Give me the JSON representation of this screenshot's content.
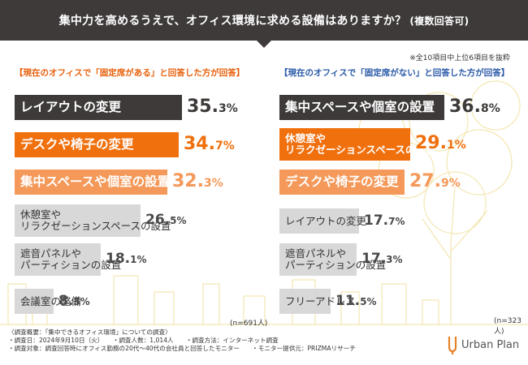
{
  "header": {
    "title": "集中力を高めるうえで、オフィス環境に求める設備はありますか？",
    "subtitle": "(複数回答可)"
  },
  "note": "※全10項目中上位6項目を抜粋",
  "brand": {
    "logo_text": "Urban Plan"
  },
  "colors": {
    "dark": "#3d3a39",
    "orange": "#f0700e",
    "light_orange": "#f4995a",
    "gray": "#d8d8d8",
    "blue": "#2a5aa8"
  },
  "chart_data": [
    {
      "type": "bar",
      "title": "【現在のオフィスで「固定席がある」と回答した方が回答】",
      "n_label": "(n=691人)",
      "categories": [
        "レイアウトの変更",
        "デスクや椅子の変更",
        "集中スペースや個室の設置",
        "休憩室やリラクゼーションスペースの設置",
        "遮音パネルやパーティションの設置",
        "会議室の整備"
      ],
      "display_labels": [
        [
          "レイアウトの変更"
        ],
        [
          "デスクや椅子の変更"
        ],
        [
          "集中スペースや個室の設置"
        ],
        [
          "休憩室や",
          "リラクゼーションスペースの設置"
        ],
        [
          "遮音パネルや",
          "パーティションの設置"
        ],
        [
          "会議室の整備"
        ]
      ],
      "values": [
        35.3,
        34.7,
        32.3,
        26.5,
        18.1,
        8.3
      ],
      "value_labels": [
        [
          "35.",
          "3%"
        ],
        [
          "34.",
          "7%"
        ],
        [
          "32.",
          "3%"
        ],
        [
          "26.",
          "5%"
        ],
        [
          "18.",
          "1%"
        ],
        [
          "8.",
          "3%"
        ]
      ],
      "styles": [
        "dark",
        "orange",
        "light_orange",
        "gray",
        "gray",
        "gray"
      ],
      "unit": "%"
    },
    {
      "type": "bar",
      "title": "【現在のオフィスで「固定席がない」と回答した方が回答】",
      "n_label": "(n=323人)",
      "categories": [
        "集中スペースや個室の設置",
        "休憩室やリラクゼーションスペースの設置",
        "デスクや椅子の変更",
        "レイアウトの変更",
        "遮音パネルやパーティションの設置",
        "フリーアドレス"
      ],
      "display_labels": [
        [
          "集中スペースや個室の設置"
        ],
        [
          "休憩室や",
          "リラクゼーションスペースの設置"
        ],
        [
          "デスクや椅子の変更"
        ],
        [
          "レイアウトの変更"
        ],
        [
          "遮音パネルや",
          "パーティションの設置"
        ],
        [
          "フリーアドレス"
        ]
      ],
      "values": [
        36.8,
        29.1,
        27.9,
        17.7,
        17.3,
        11.5
      ],
      "value_labels": [
        [
          "36.",
          "8%"
        ],
        [
          "29.",
          "1%"
        ],
        [
          "27.",
          "9%"
        ],
        [
          "17.",
          "7%"
        ],
        [
          "17.",
          "3%"
        ],
        [
          "11.",
          "5%"
        ]
      ],
      "styles": [
        "dark",
        "orange",
        "light_orange",
        "gray",
        "gray",
        "gray"
      ],
      "unit": "%"
    }
  ],
  "survey": {
    "lines": [
      "〈調査概要：「集中できるオフィス環境」についての調査〉",
      "・調査日：2024年9月10日（火）　　・調査人数：1,014人　　・調査方法：インターネット調査",
      "・調査対象：調査回答時にオフィス勤務の20代〜40代の会社員と回答したモニター　　・モニター提供元：PRIZMAリサーチ"
    ]
  }
}
